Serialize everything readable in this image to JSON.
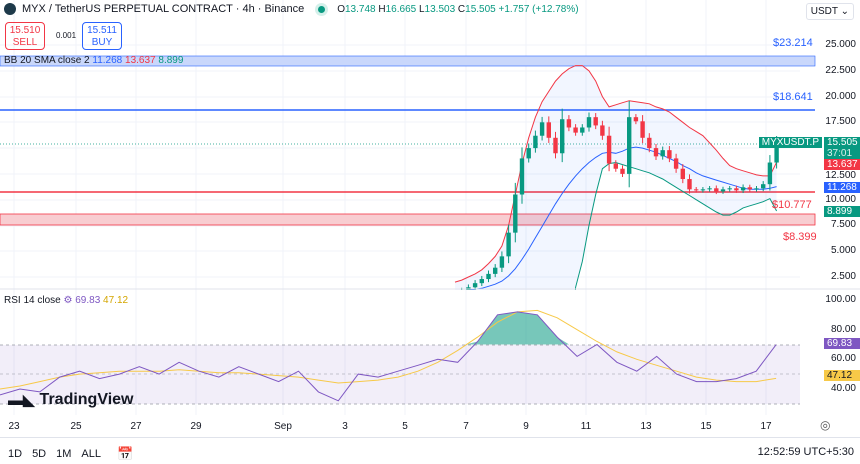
{
  "header": {
    "symbol": "MYX / TetherUS PERPETUAL CONTRACT · 4h · Binance",
    "open": "13.748",
    "high": "16.665",
    "low": "13.503",
    "close": "15.505",
    "change": "+1.757 (+12.78%)",
    "o": "O",
    "h": "H",
    "l": "L",
    "c": "C",
    "currency": "USDT"
  },
  "trade": {
    "sell_price": "15.510",
    "sell_label": "SELL",
    "spread": "0.001",
    "buy_price": "15.511",
    "buy_label": "BUY"
  },
  "bb_legend": {
    "label": "BB 20 SMA close 2",
    "basis": "11.268",
    "upper": "13.637",
    "lower": "8.899"
  },
  "levels": {
    "l1": "$23.214",
    "l2": "$18.641",
    "l3": "$10.777",
    "l4": "$8.399"
  },
  "tags": {
    "symbol": "MYXUSDT.P",
    "price": "15.505",
    "countdown": "37:01",
    "upper": "13.637",
    "basis": "11.268",
    "lower": "8.899",
    "rsi": "69.83",
    "rsi_ma": "47.12"
  },
  "price_axis": [
    "25.000",
    "22.500",
    "20.000",
    "17.500",
    "12.500",
    "10.000",
    "7.500",
    "5.000",
    "2.500"
  ],
  "rsi_axis": [
    "100.00",
    "80.00",
    "60.00",
    "40.00"
  ],
  "rsi_legend": {
    "label": "RSI 14 close",
    "value": "69.83",
    "ma": "47.12"
  },
  "dates": [
    "23",
    "25",
    "27",
    "29",
    "Sep",
    "3",
    "5",
    "7",
    "9",
    "11",
    "13",
    "15",
    "17"
  ],
  "ranges": [
    "1D",
    "5D",
    "1M",
    "ALL"
  ],
  "clock": "12:52:59 UTC+5:30",
  "logo": "TradingView",
  "colors": {
    "up": "#089981",
    "down": "#f23645",
    "blue": "#2962ff",
    "purple": "#7e57c2",
    "yellow": "#f7c948"
  },
  "chart_data": {
    "type": "candlestick",
    "closes": [
      1.0,
      1.2,
      1.5,
      1.9,
      2.3,
      2.8,
      3.4,
      4.5,
      6.8,
      10.5,
      14.0,
      15.0,
      16.2,
      17.5,
      16.0,
      14.5,
      17.8,
      17.0,
      16.5,
      17.0,
      18.0,
      17.2,
      16.2,
      13.5,
      13.0,
      12.5,
      18.0,
      17.6,
      16.0,
      15.0,
      14.2,
      14.8,
      14.0,
      13.0,
      12.0,
      11.0,
      10.9,
      11.0,
      11.1,
      10.8,
      11.0,
      11.1,
      10.9,
      11.2,
      11.0,
      11.1,
      11.5,
      13.6,
      15.5
    ],
    "bb_upper": [
      2.0,
      2.2,
      2.5,
      2.8,
      3.2,
      3.8,
      4.5,
      5.5,
      7.5,
      10.5,
      13.5,
      16.0,
      18.0,
      19.5,
      20.5,
      21.5,
      22.2,
      22.7,
      23.0,
      23.0,
      22.5,
      21.5,
      20.0,
      19.0,
      19.2,
      19.4,
      19.6,
      19.5,
      19.4,
      19.3,
      19.0,
      18.8,
      18.5,
      18.0,
      17.5,
      17.0,
      16.6,
      16.2,
      15.5,
      14.8,
      14.0,
      13.3,
      13.0,
      12.8,
      12.6,
      12.4,
      12.3,
      12.3,
      13.637
    ],
    "bb_basis": [
      1.0,
      1.1,
      1.2,
      1.3,
      1.4,
      1.6,
      1.8,
      2.1,
      2.6,
      3.3,
      4.2,
      5.2,
      6.3,
      7.4,
      8.5,
      9.6,
      10.6,
      11.5,
      12.3,
      13.0,
      13.6,
      14.1,
      14.5,
      14.6,
      14.5,
      14.7,
      15.0,
      15.1,
      15.0,
      14.8,
      14.6,
      14.3,
      14.0,
      13.7,
      13.3,
      13.0,
      12.6,
      12.3,
      12.1,
      11.9,
      11.7,
      11.5,
      11.3,
      11.1,
      11.0,
      11.0,
      11.0,
      11.1,
      11.268
    ],
    "bb_lower": [
      null,
      null,
      null,
      null,
      null,
      null,
      null,
      null,
      null,
      null,
      null,
      null,
      null,
      null,
      null,
      null,
      null,
      null,
      1.5,
      4,
      7.5,
      10.5,
      13.0,
      13.5,
      13.6,
      13.4,
      13.2,
      13.0,
      12.8,
      12.6,
      12.3,
      12.0,
      11.6,
      11.2,
      10.8,
      10.4,
      10.0,
      9.6,
      9.2,
      8.8,
      8.5,
      8.5,
      8.8,
      9.2,
      9.4,
      9.6,
      9.8,
      10.1,
      8.899
    ],
    "levels": [
      23.214,
      18.641,
      10.777,
      8.399
    ],
    "rsi": [
      36,
      40,
      38,
      48,
      52,
      47,
      50,
      55,
      50,
      58,
      52,
      48,
      55,
      50,
      45,
      52,
      38,
      32,
      50,
      48,
      52,
      56,
      60,
      58,
      72,
      90,
      92,
      90,
      75,
      62,
      70,
      58,
      52,
      62,
      50,
      45,
      45,
      47,
      52,
      69.83
    ],
    "rsi_ma": [
      40,
      42,
      45,
      48,
      50,
      51,
      52,
      52,
      52,
      53,
      52,
      51,
      51,
      50,
      49,
      48,
      46,
      44,
      45,
      46,
      48,
      52,
      58,
      66,
      75,
      85,
      92,
      93,
      88,
      80,
      72,
      65,
      60,
      56,
      52,
      48,
      46,
      45,
      45,
      47.12
    ],
    "ylim": [
      0,
      25
    ],
    "rsi_ylim": [
      30,
      100
    ]
  }
}
